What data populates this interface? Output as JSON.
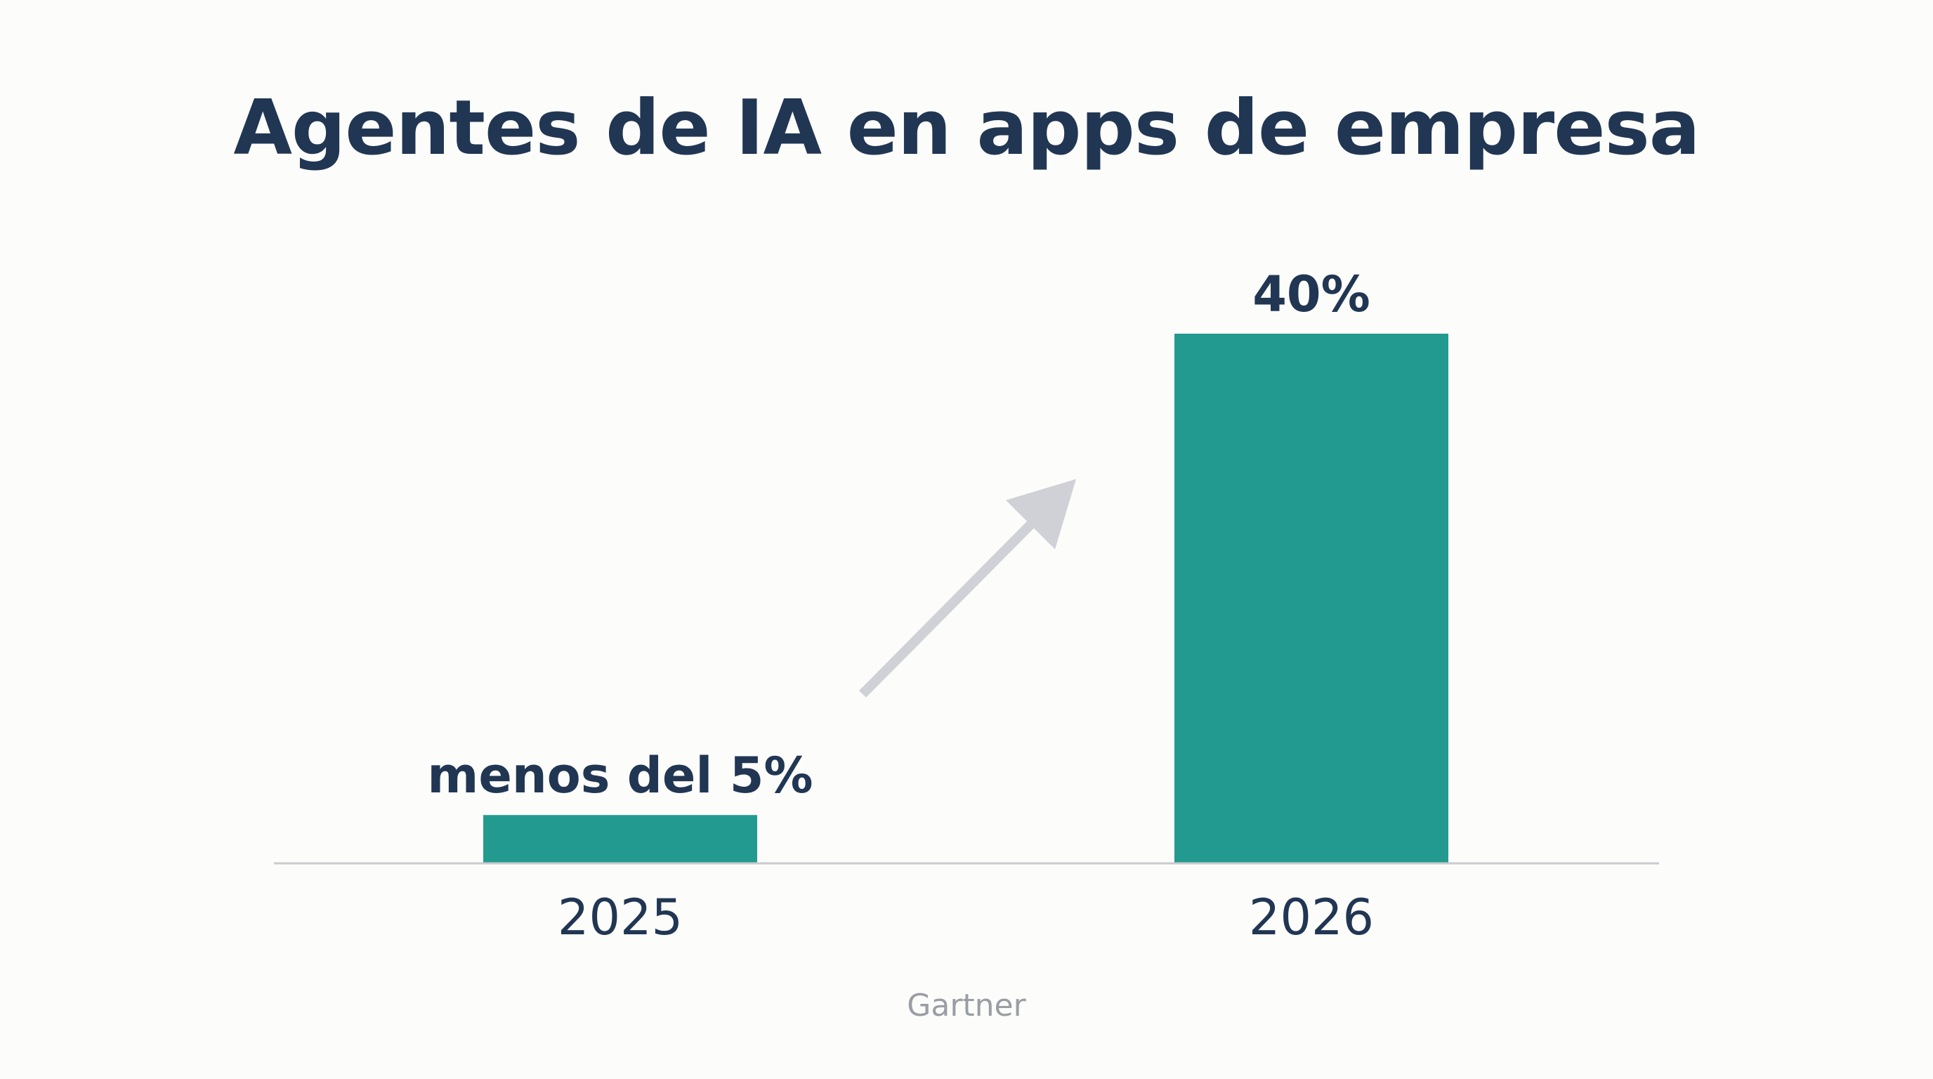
{
  "chart_data": {
    "type": "bar",
    "title": "Agentes de IA en apps de empresa",
    "categories": [
      "2025",
      "2026"
    ],
    "values": [
      5,
      40
    ],
    "data_labels": [
      "menos del 5%",
      "40%"
    ],
    "unit": "%",
    "xlabel": "",
    "ylabel": "",
    "ylim": [
      0,
      40
    ],
    "grid": false,
    "legend": "none",
    "annotation": "upward trend arrow between bars",
    "source": "Gartner"
  },
  "colors": {
    "background": "#fcfcfa",
    "bar": "#239a90",
    "text": "#213653",
    "axis": "#c9cbcf",
    "arrow": "#cfd1d6",
    "source": "#9a9ea4"
  },
  "icons": {
    "trend": "arrow-up-right-icon"
  }
}
